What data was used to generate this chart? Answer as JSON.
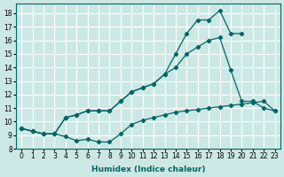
{
  "xlabel": "Humidex (Indice chaleur)",
  "background_color": "#cce8e4",
  "grid_color": "#ffffff",
  "line_color": "#006666",
  "xlim": [
    -0.5,
    23.5
  ],
  "ylim": [
    8,
    18.7
  ],
  "xticks": [
    0,
    1,
    2,
    3,
    4,
    5,
    6,
    7,
    8,
    9,
    10,
    11,
    12,
    13,
    14,
    15,
    16,
    17,
    18,
    19,
    20,
    21,
    22,
    23
  ],
  "yticks": [
    8,
    9,
    10,
    11,
    12,
    13,
    14,
    15,
    16,
    17,
    18
  ],
  "line1_x": [
    0,
    1,
    2,
    3,
    4,
    5,
    6,
    7,
    8,
    9,
    10,
    11,
    12,
    13,
    14,
    15,
    16,
    17,
    18,
    19,
    20,
    21,
    22,
    23
  ],
  "line1_y": [
    9.5,
    9.3,
    9.1,
    9.1,
    8.9,
    8.6,
    8.7,
    8.5,
    8.5,
    9.1,
    9.8,
    10.1,
    10.3,
    10.5,
    10.7,
    10.8,
    10.9,
    11.0,
    11.1,
    11.2,
    11.3,
    11.4,
    11.5,
    10.8
  ],
  "line2_x": [
    0,
    1,
    2,
    3,
    4,
    5,
    6,
    7,
    8,
    9,
    10,
    11,
    12,
    13,
    14,
    15,
    16,
    17,
    18,
    19,
    20,
    21,
    22,
    23
  ],
  "line2_y": [
    9.5,
    9.3,
    9.1,
    9.1,
    10.3,
    10.5,
    10.8,
    10.8,
    10.8,
    11.5,
    12.2,
    12.5,
    12.8,
    13.5,
    14.0,
    15.0,
    15.5,
    16.0,
    16.2,
    13.8,
    11.5,
    11.5,
    11.0,
    10.8
  ],
  "line3_x": [
    0,
    1,
    2,
    3,
    4,
    5,
    6,
    7,
    8,
    9,
    10,
    11,
    12,
    13,
    14,
    15,
    16,
    17,
    18,
    19,
    20,
    21,
    22,
    23
  ],
  "line3_y": [
    9.5,
    9.3,
    9.1,
    9.1,
    10.3,
    10.5,
    10.8,
    10.8,
    10.8,
    11.5,
    12.2,
    12.5,
    12.8,
    13.5,
    15.0,
    16.5,
    17.5,
    17.5,
    18.2,
    16.5,
    16.5,
    null,
    null,
    null
  ]
}
